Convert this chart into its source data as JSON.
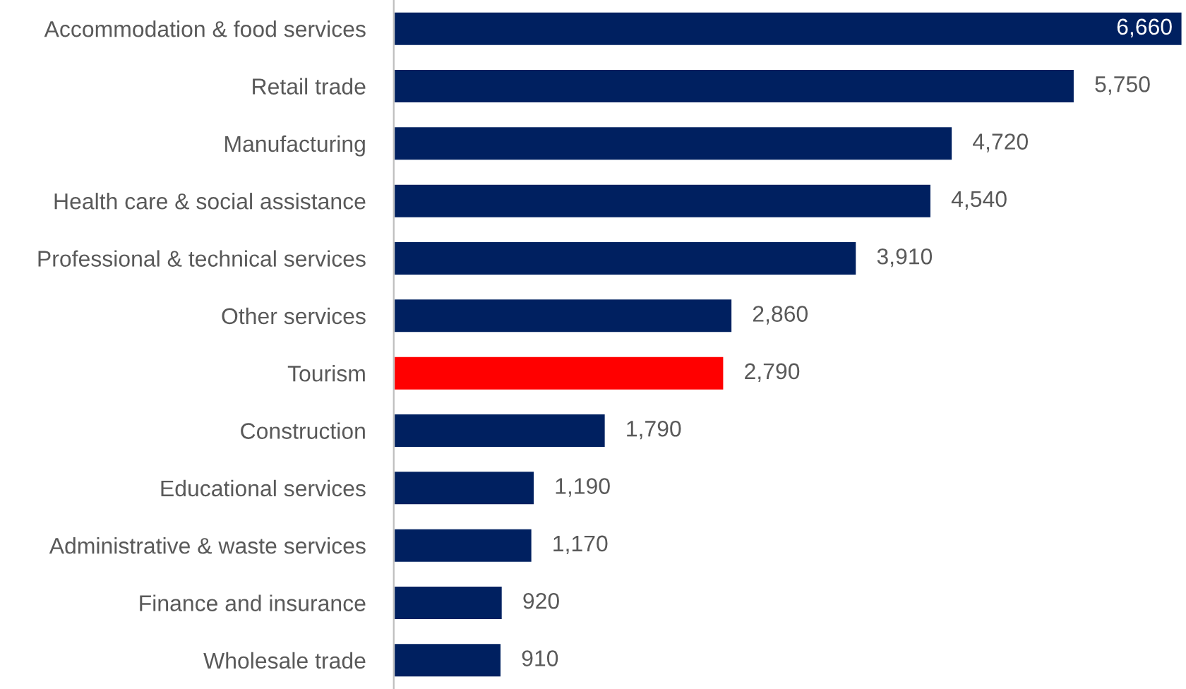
{
  "chart_data": {
    "type": "bar",
    "orientation": "horizontal",
    "categories": [
      "Accommodation & food services",
      "Retail trade",
      "Manufacturing",
      "Health care & social assistance",
      "Professional & technical services",
      "Other services",
      "Tourism",
      "Construction",
      "Educational services",
      "Administrative & waste services",
      "Finance and insurance",
      "Wholesale trade"
    ],
    "values": [
      6660,
      5750,
      4720,
      4540,
      3910,
      2860,
      2790,
      1790,
      1190,
      1170,
      920,
      910
    ],
    "colors": [
      "#002060",
      "#002060",
      "#002060",
      "#002060",
      "#002060",
      "#002060",
      "#ff0000",
      "#002060",
      "#002060",
      "#002060",
      "#002060",
      "#002060"
    ],
    "value_labels": [
      "6,660",
      "5,750",
      "4,720",
      "4,540",
      "3,910",
      "2,860",
      "2,790",
      "1,790",
      "1,190",
      "1,170",
      "920",
      "910"
    ],
    "grid": false,
    "legend": false
  }
}
